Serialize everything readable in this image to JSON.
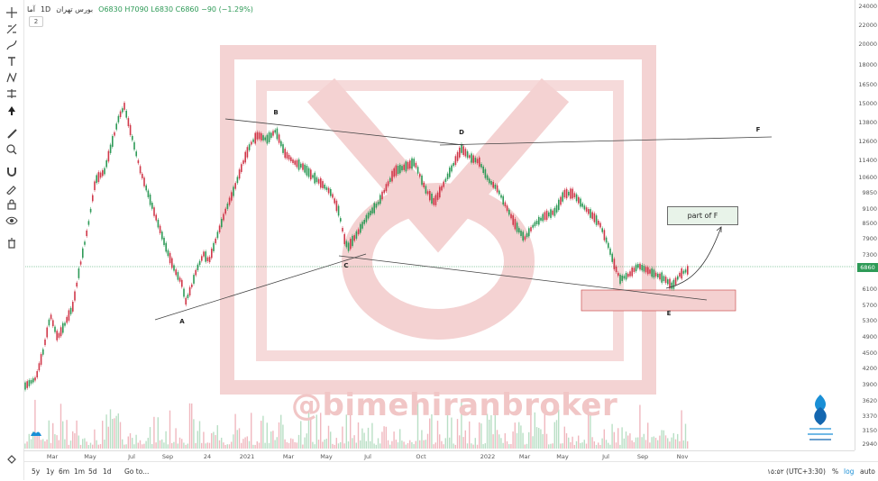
{
  "header": {
    "symbol": "آما",
    "interval": "1D",
    "exchange": "بورس تهران",
    "ohlc": "O6830 H7090 L6830 C6860 −90 (−1.29%)",
    "collapse_label": "2"
  },
  "price_axis": {
    "ticks": [
      "24000",
      "22000",
      "20000",
      "18000",
      "16500",
      "15000",
      "13800",
      "12600",
      "11400",
      "10600",
      "9850",
      "9100",
      "8500",
      "7900",
      "7300",
      "6860",
      "6100",
      "5700",
      "5300",
      "4900",
      "4500",
      "4200",
      "3900",
      "3620",
      "3370",
      "3150",
      "2940"
    ],
    "last_price": "6860"
  },
  "time_axis": {
    "ticks": [
      "Mar",
      "May",
      "Jul",
      "Sep",
      "24",
      "2021",
      "Mar",
      "May",
      "Jul",
      "Oct",
      "2022",
      "Mar",
      "May",
      "Jul",
      "Sep",
      "Nov"
    ]
  },
  "annotations": {
    "A": "A",
    "B": "B",
    "C": "C",
    "D": "D",
    "E": "E",
    "F": "F",
    "part_of_f": "part of F"
  },
  "watermark": {
    "handle": "@bimehiranbroker"
  },
  "bottom_bar": {
    "ranges": [
      "5y",
      "1y",
      "6m",
      "1m",
      "5d",
      "1d"
    ],
    "goto": "Go to...",
    "clock": "۱۵:۵۲ (UTC+3:30)",
    "percent": "%",
    "log": "log",
    "auto": "auto"
  },
  "colors": {
    "up": "#2e9a57",
    "down": "#d0384a",
    "watermark": "#f4cfcf",
    "accent_blue": "#1a8fd6"
  },
  "icons": [
    "cross-icon",
    "trend-line-icon",
    "brush-icon",
    "text-icon",
    "pattern-icon",
    "measure-icon",
    "cursor-arrow-icon",
    "ruler-icon",
    "zoom-icon",
    "magnet-icon",
    "lock-draw-icon",
    "lock-icon",
    "eye-icon",
    "trash-icon",
    "settings-icon"
  ]
}
